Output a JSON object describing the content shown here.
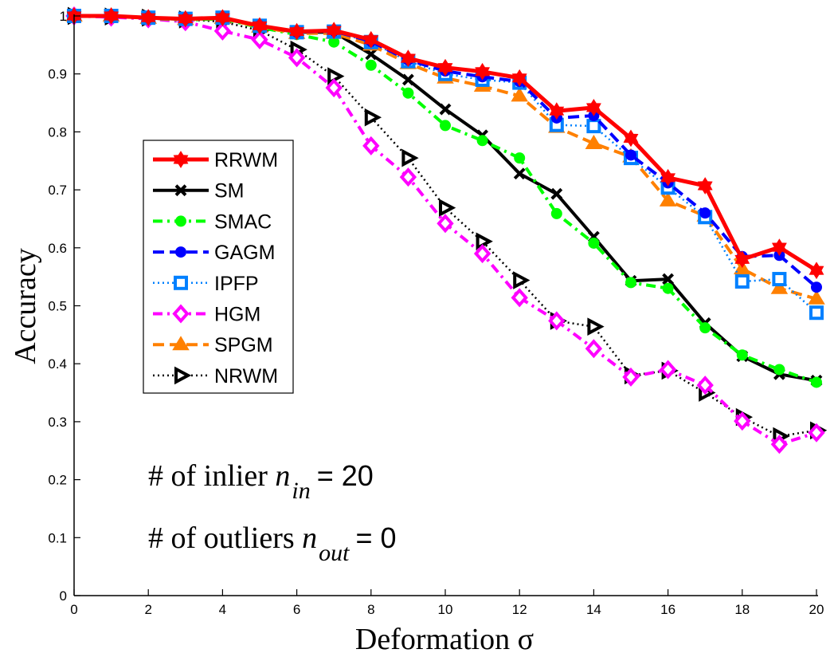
{
  "chart_data": {
    "type": "line",
    "title": "",
    "xlabel": "Deformation σ",
    "ylabel": "Accuracy",
    "xlim": [
      0,
      20
    ],
    "ylim": [
      0,
      1
    ],
    "xticks": [
      0,
      2,
      4,
      6,
      8,
      10,
      12,
      14,
      16,
      18,
      20
    ],
    "yticks": [
      0,
      0.1,
      0.2,
      0.3,
      0.4,
      0.5,
      0.6,
      0.7,
      0.8,
      0.9,
      1
    ],
    "ytick_labels": [
      "0",
      "0.1",
      "0.2",
      "0.3",
      "0.4",
      "0.5",
      "0.6",
      "0.7",
      "0.8",
      "0.9",
      "1"
    ],
    "grid": false,
    "legend_position": "center-left",
    "x": [
      0,
      1,
      2,
      3,
      4,
      5,
      6,
      7,
      8,
      9,
      10,
      11,
      12,
      13,
      14,
      15,
      16,
      17,
      18,
      19,
      20
    ],
    "series": [
      {
        "name": "RRWM",
        "color": "#ff0000",
        "line_style": "solid",
        "marker": "hexagram",
        "values": [
          1.0,
          1.0,
          0.997,
          0.995,
          0.997,
          0.983,
          0.973,
          0.975,
          0.959,
          0.927,
          0.911,
          0.904,
          0.893,
          0.836,
          0.842,
          0.789,
          0.721,
          0.707,
          0.58,
          0.601,
          0.561
        ]
      },
      {
        "name": "SM",
        "color": "#000000",
        "line_style": "solid",
        "marker": "x",
        "values": [
          1.0,
          1.0,
          0.997,
          0.994,
          0.996,
          0.982,
          0.972,
          0.972,
          0.934,
          0.89,
          0.839,
          0.794,
          0.728,
          0.693,
          0.619,
          0.543,
          0.546,
          0.47,
          0.413,
          0.382,
          0.371
        ]
      },
      {
        "name": "SMAC",
        "color": "#00ff00",
        "line_style": "dashdot",
        "marker": "circle",
        "values": [
          1.0,
          1.0,
          0.996,
          0.993,
          0.995,
          0.98,
          0.968,
          0.955,
          0.915,
          0.867,
          0.811,
          0.785,
          0.755,
          0.659,
          0.608,
          0.54,
          0.53,
          0.462,
          0.415,
          0.39,
          0.368
        ]
      },
      {
        "name": "GAGM",
        "color": "#0000ff",
        "line_style": "dashed",
        "marker": "circle",
        "values": [
          1.0,
          1.0,
          0.997,
          0.995,
          0.997,
          0.983,
          0.972,
          0.974,
          0.956,
          0.924,
          0.905,
          0.895,
          0.887,
          0.824,
          0.828,
          0.76,
          0.712,
          0.66,
          0.585,
          0.587,
          0.532
        ]
      },
      {
        "name": "IPFP",
        "color": "#0080ff",
        "line_style": "dotted",
        "marker": "square",
        "values": [
          1.0,
          1.0,
          0.997,
          0.995,
          0.997,
          0.983,
          0.972,
          0.973,
          0.955,
          0.922,
          0.9,
          0.89,
          0.885,
          0.812,
          0.81,
          0.755,
          0.704,
          0.653,
          0.542,
          0.546,
          0.488
        ]
      },
      {
        "name": "HGM",
        "color": "#ff00ff",
        "line_style": "dashdot",
        "marker": "diamond",
        "values": [
          1.0,
          0.998,
          0.995,
          0.99,
          0.974,
          0.959,
          0.928,
          0.876,
          0.776,
          0.722,
          0.642,
          0.59,
          0.514,
          0.474,
          0.426,
          0.377,
          0.39,
          0.363,
          0.301,
          0.261,
          0.281
        ]
      },
      {
        "name": "SPGM",
        "color": "#ff8000",
        "line_style": "dashed",
        "marker": "triangle-up",
        "values": [
          1.0,
          1.0,
          0.996,
          0.994,
          0.996,
          0.981,
          0.97,
          0.97,
          0.95,
          0.918,
          0.893,
          0.879,
          0.862,
          0.808,
          0.78,
          0.757,
          0.681,
          0.655,
          0.564,
          0.53,
          0.512
        ]
      },
      {
        "name": "NRWM",
        "color": "#000000",
        "line_style": "dotted",
        "marker": "triangle-right",
        "values": [
          1.0,
          0.999,
          0.997,
          0.994,
          0.99,
          0.975,
          0.942,
          0.896,
          0.825,
          0.755,
          0.669,
          0.611,
          0.544,
          0.474,
          0.464,
          0.38,
          0.388,
          0.35,
          0.308,
          0.275,
          0.285
        ]
      }
    ],
    "annotations": [
      {
        "prefix": "# of inlier ",
        "var": "n",
        "sub": "in",
        "suffix": "= 20"
      },
      {
        "prefix": "# of outliers ",
        "var": "n",
        "sub": "out",
        "suffix": "= 0"
      }
    ]
  }
}
